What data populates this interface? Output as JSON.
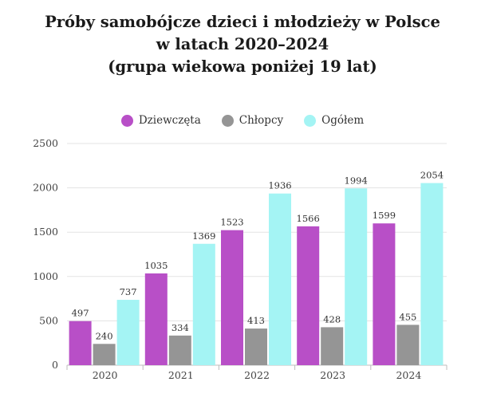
{
  "title_lines": [
    "Próby samobójcze dzieci i młodzieży w Polsce",
    "w latach 2020–2024",
    "(grupa wiekowa poniżej 19 lat)"
  ],
  "chart_data": {
    "type": "bar",
    "title": "Próby samobójcze dzieci i młodzieży w Polsce w latach 2020–2024 (grupa wiekowa poniżej 19 lat)",
    "categories": [
      "2020",
      "2021",
      "2022",
      "2023",
      "2024"
    ],
    "series": [
      {
        "name": "Dziewczęta",
        "color": "#b84fc7",
        "values": [
          497,
          1035,
          1523,
          1566,
          1599
        ]
      },
      {
        "name": "Chłopcy",
        "color": "#959595",
        "values": [
          240,
          334,
          413,
          428,
          455
        ]
      },
      {
        "name": "Ogółem",
        "color": "#a4f4f4",
        "values": [
          737,
          1369,
          1936,
          1994,
          2054
        ]
      }
    ],
    "ylim": [
      0,
      2500
    ],
    "yticks": [
      0,
      500,
      1000,
      1500,
      2000,
      2500
    ],
    "xlabel": "",
    "ylabel": "",
    "legend": "top-center",
    "grid": true
  }
}
